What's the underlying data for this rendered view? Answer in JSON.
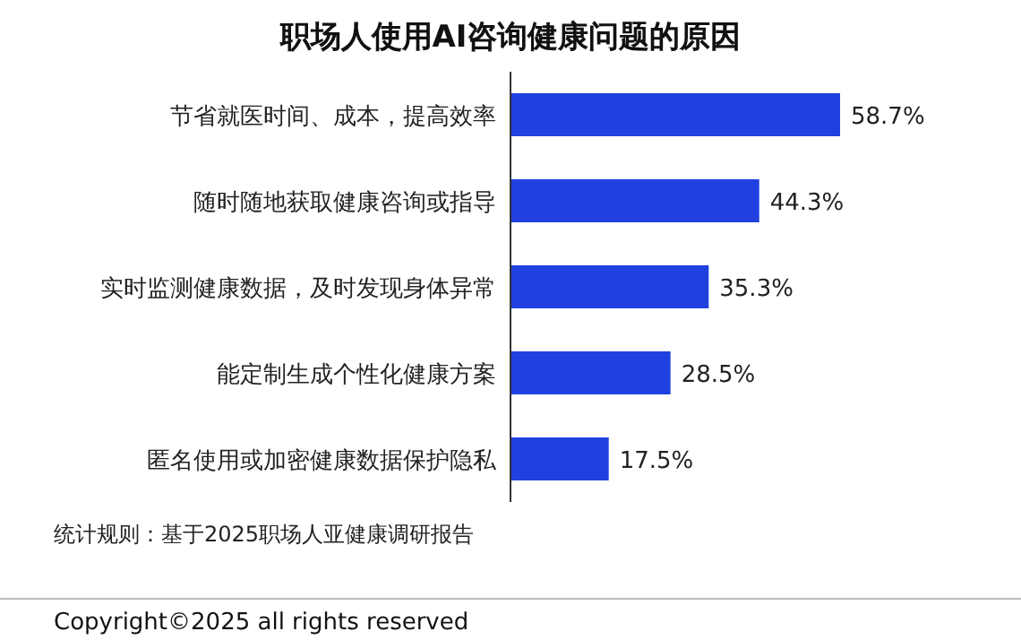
{
  "chart_data": {
    "type": "bar",
    "orientation": "horizontal",
    "title": "职场人使用AI咨询健康问题的原因",
    "categories": [
      "节省就医时间、成本，提高效率",
      "随时随地获取健康咨询或指导",
      "实时监测健康数据，及时发现身体异常",
      "能定制生成个性化健康方案",
      "匿名使用或加密健康数据保护隐私"
    ],
    "values": [
      58.7,
      44.3,
      35.3,
      28.5,
      17.5
    ],
    "value_labels": [
      "58.7%",
      "44.3%",
      "35.3%",
      "28.5%",
      "17.5%"
    ],
    "color": "#2041e0",
    "annotations": [
      "统计规则：基于2025职场人亚健康调研报告",
      "Copyright©2025 all rights reserved"
    ]
  }
}
